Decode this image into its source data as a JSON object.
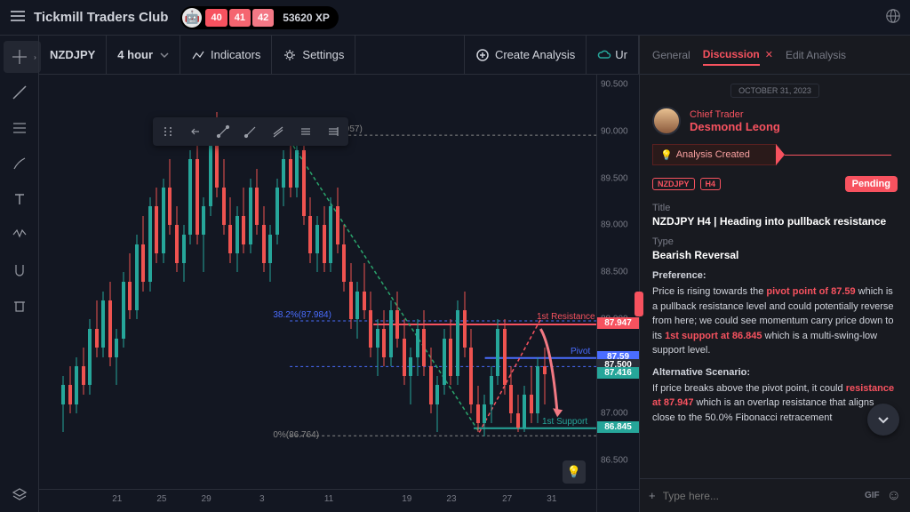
{
  "header": {
    "brand": "Tickmill Traders Club",
    "xp_boxes": [
      {
        "v": "40",
        "bg": "#f7525f"
      },
      {
        "v": "41",
        "bg": "#f56570"
      },
      {
        "v": "42",
        "bg": "#f37885"
      }
    ],
    "xp_total": "53620 XP"
  },
  "toolbar": {
    "symbol": "NZDJPY",
    "interval": "4 hour",
    "indicators": "Indicators",
    "settings": "Settings",
    "create": "Create Analysis",
    "ur": "Ur"
  },
  "chart": {
    "colors": {
      "up": "#26a69a",
      "down": "#ef5350",
      "resistance": "#f7525f",
      "pivot": "#4a6dff",
      "support": "#26a69a",
      "fib_line": "#4a6dff",
      "fib_text": "#787b86",
      "trend1": "#26a69a",
      "trend2": "#f7525f",
      "arrow": "#f27983"
    },
    "y_range": [
      86.2,
      90.6
    ],
    "y_ticks": [
      "90.500",
      "90.000",
      "89.500",
      "89.000",
      "88.500",
      "88.000",
      "87.500",
      "87.000",
      "86.500"
    ],
    "x_ticks": [
      {
        "p": 14,
        "l": "21"
      },
      {
        "p": 22,
        "l": "25"
      },
      {
        "p": 30,
        "l": "29"
      },
      {
        "p": 40,
        "l": "3"
      },
      {
        "p": 52,
        "l": "11"
      },
      {
        "p": 66,
        "l": "19"
      },
      {
        "p": 74,
        "l": "23"
      },
      {
        "p": 84,
        "l": "27"
      },
      {
        "p": 92,
        "l": "31"
      }
    ],
    "price_tags": [
      {
        "v": "87.947",
        "bg": "#f7525f",
        "y": 87.947
      },
      {
        "v": "87.59",
        "bg": "#4a6dff",
        "y": 87.59
      },
      {
        "v": "87.500",
        "bg": "#2a2e39",
        "y": 87.5
      },
      {
        "v": "87.416",
        "bg": "#26a69a",
        "y": 87.416
      },
      {
        "v": "86.845",
        "bg": "#26a69a",
        "y": 86.845
      }
    ],
    "fib_100": "100%(89.957)",
    "fib_382": "38.2%(87.984)",
    "fib_0": "0%(86.764)",
    "lbl_resistance": "1st Resistance",
    "lbl_pivot": "Pivot",
    "lbl_support": "1st Support",
    "candles": [
      {
        "x": 4,
        "o": 87.1,
        "h": 87.4,
        "l": 86.8,
        "c": 87.3,
        "u": 1
      },
      {
        "x": 5.2,
        "o": 87.3,
        "h": 87.5,
        "l": 87.0,
        "c": 87.1,
        "u": 0
      },
      {
        "x": 6.4,
        "o": 87.1,
        "h": 87.6,
        "l": 87.0,
        "c": 87.5,
        "u": 1
      },
      {
        "x": 7.6,
        "o": 87.5,
        "h": 87.7,
        "l": 87.2,
        "c": 87.3,
        "u": 0
      },
      {
        "x": 8.8,
        "o": 87.3,
        "h": 88.0,
        "l": 87.2,
        "c": 87.9,
        "u": 1
      },
      {
        "x": 10,
        "o": 87.9,
        "h": 88.2,
        "l": 87.6,
        "c": 87.7,
        "u": 0
      },
      {
        "x": 11.2,
        "o": 87.7,
        "h": 88.3,
        "l": 87.6,
        "c": 88.2,
        "u": 1
      },
      {
        "x": 12.4,
        "o": 88.2,
        "h": 88.4,
        "l": 87.5,
        "c": 87.6,
        "u": 0
      },
      {
        "x": 13.6,
        "o": 87.6,
        "h": 87.9,
        "l": 87.3,
        "c": 87.8,
        "u": 1
      },
      {
        "x": 14.8,
        "o": 87.8,
        "h": 88.5,
        "l": 87.7,
        "c": 88.4,
        "u": 1
      },
      {
        "x": 16,
        "o": 88.4,
        "h": 88.7,
        "l": 88.0,
        "c": 88.1,
        "u": 0
      },
      {
        "x": 17.2,
        "o": 88.1,
        "h": 88.9,
        "l": 88.0,
        "c": 88.8,
        "u": 1
      },
      {
        "x": 18.4,
        "o": 88.8,
        "h": 89.1,
        "l": 88.3,
        "c": 88.4,
        "u": 0
      },
      {
        "x": 19.6,
        "o": 88.4,
        "h": 89.3,
        "l": 88.3,
        "c": 89.2,
        "u": 1
      },
      {
        "x": 20.8,
        "o": 89.2,
        "h": 89.4,
        "l": 88.6,
        "c": 88.7,
        "u": 0
      },
      {
        "x": 22,
        "o": 88.7,
        "h": 89.5,
        "l": 88.6,
        "c": 89.4,
        "u": 1
      },
      {
        "x": 23.2,
        "o": 89.4,
        "h": 89.7,
        "l": 88.9,
        "c": 89.0,
        "u": 0
      },
      {
        "x": 24.4,
        "o": 89.0,
        "h": 89.2,
        "l": 88.5,
        "c": 88.6,
        "u": 0
      },
      {
        "x": 25.6,
        "o": 88.6,
        "h": 89.0,
        "l": 88.4,
        "c": 88.9,
        "u": 1
      },
      {
        "x": 26.8,
        "o": 88.9,
        "h": 89.8,
        "l": 88.8,
        "c": 89.7,
        "u": 1
      },
      {
        "x": 28,
        "o": 89.7,
        "h": 89.9,
        "l": 88.8,
        "c": 88.9,
        "u": 0
      },
      {
        "x": 29.2,
        "o": 88.9,
        "h": 89.3,
        "l": 88.5,
        "c": 89.2,
        "u": 1
      },
      {
        "x": 30.4,
        "o": 89.2,
        "h": 90.1,
        "l": 89.1,
        "c": 90.0,
        "u": 1
      },
      {
        "x": 31.6,
        "o": 90.0,
        "h": 90.2,
        "l": 89.3,
        "c": 89.4,
        "u": 0
      },
      {
        "x": 32.8,
        "o": 89.4,
        "h": 89.7,
        "l": 88.9,
        "c": 89.0,
        "u": 0
      },
      {
        "x": 34,
        "o": 89.0,
        "h": 89.3,
        "l": 88.6,
        "c": 88.7,
        "u": 0
      },
      {
        "x": 35.2,
        "o": 88.7,
        "h": 89.2,
        "l": 88.5,
        "c": 89.1,
        "u": 1
      },
      {
        "x": 36.4,
        "o": 89.1,
        "h": 89.4,
        "l": 88.7,
        "c": 88.8,
        "u": 0
      },
      {
        "x": 37.6,
        "o": 88.8,
        "h": 89.5,
        "l": 88.7,
        "c": 89.4,
        "u": 1
      },
      {
        "x": 38.8,
        "o": 89.4,
        "h": 89.6,
        "l": 88.9,
        "c": 89.0,
        "u": 0
      },
      {
        "x": 40,
        "o": 89.0,
        "h": 89.2,
        "l": 88.5,
        "c": 88.6,
        "u": 0
      },
      {
        "x": 41.2,
        "o": 88.6,
        "h": 89.0,
        "l": 88.4,
        "c": 88.9,
        "u": 1
      },
      {
        "x": 42.4,
        "o": 88.9,
        "h": 89.5,
        "l": 88.8,
        "c": 89.4,
        "u": 1
      },
      {
        "x": 43.6,
        "o": 89.4,
        "h": 89.8,
        "l": 89.2,
        "c": 89.7,
        "u": 1
      },
      {
        "x": 44.8,
        "o": 89.7,
        "h": 89.95,
        "l": 89.3,
        "c": 89.4,
        "u": 0
      },
      {
        "x": 46,
        "o": 89.4,
        "h": 89.9,
        "l": 89.3,
        "c": 89.8,
        "u": 1
      },
      {
        "x": 47.2,
        "o": 89.8,
        "h": 89.9,
        "l": 89.0,
        "c": 89.1,
        "u": 0
      },
      {
        "x": 48.4,
        "o": 89.1,
        "h": 89.3,
        "l": 88.6,
        "c": 88.7,
        "u": 0
      },
      {
        "x": 49.6,
        "o": 88.7,
        "h": 89.1,
        "l": 88.5,
        "c": 89.0,
        "u": 1
      },
      {
        "x": 50.8,
        "o": 89.0,
        "h": 89.2,
        "l": 88.5,
        "c": 88.6,
        "u": 0
      },
      {
        "x": 52,
        "o": 88.6,
        "h": 89.3,
        "l": 88.5,
        "c": 89.2,
        "u": 1
      },
      {
        "x": 53.2,
        "o": 89.2,
        "h": 89.4,
        "l": 88.7,
        "c": 88.8,
        "u": 0
      },
      {
        "x": 54.4,
        "o": 88.8,
        "h": 89.0,
        "l": 88.3,
        "c": 88.4,
        "u": 0
      },
      {
        "x": 55.6,
        "o": 88.4,
        "h": 88.6,
        "l": 87.9,
        "c": 88.0,
        "u": 0
      },
      {
        "x": 56.8,
        "o": 88.0,
        "h": 88.4,
        "l": 87.8,
        "c": 88.3,
        "u": 1
      },
      {
        "x": 58,
        "o": 88.3,
        "h": 88.6,
        "l": 88.0,
        "c": 88.1,
        "u": 0
      },
      {
        "x": 59.2,
        "o": 88.1,
        "h": 88.3,
        "l": 87.6,
        "c": 87.7,
        "u": 0
      },
      {
        "x": 60.4,
        "o": 87.7,
        "h": 88.0,
        "l": 87.4,
        "c": 87.9,
        "u": 1
      },
      {
        "x": 61.6,
        "o": 87.9,
        "h": 88.1,
        "l": 87.5,
        "c": 87.6,
        "u": 0
      },
      {
        "x": 62.8,
        "o": 87.6,
        "h": 88.2,
        "l": 87.5,
        "c": 88.1,
        "u": 1
      },
      {
        "x": 64,
        "o": 88.1,
        "h": 88.3,
        "l": 87.7,
        "c": 87.8,
        "u": 0
      },
      {
        "x": 65.2,
        "o": 87.8,
        "h": 88.0,
        "l": 87.3,
        "c": 87.4,
        "u": 0
      },
      {
        "x": 66.4,
        "o": 87.4,
        "h": 87.7,
        "l": 87.1,
        "c": 87.6,
        "u": 1
      },
      {
        "x": 67.6,
        "o": 87.6,
        "h": 88.0,
        "l": 87.4,
        "c": 87.9,
        "u": 1
      },
      {
        "x": 68.8,
        "o": 87.9,
        "h": 88.1,
        "l": 87.4,
        "c": 87.5,
        "u": 0
      },
      {
        "x": 70,
        "o": 87.5,
        "h": 87.7,
        "l": 87.0,
        "c": 87.1,
        "u": 0
      },
      {
        "x": 71.2,
        "o": 87.1,
        "h": 87.4,
        "l": 86.8,
        "c": 87.3,
        "u": 1
      },
      {
        "x": 72.4,
        "o": 87.3,
        "h": 87.9,
        "l": 87.2,
        "c": 87.8,
        "u": 1
      },
      {
        "x": 73.6,
        "o": 87.8,
        "h": 88.0,
        "l": 87.3,
        "c": 87.4,
        "u": 0
      },
      {
        "x": 74.8,
        "o": 87.4,
        "h": 88.2,
        "l": 87.3,
        "c": 88.1,
        "u": 1
      },
      {
        "x": 76,
        "o": 88.1,
        "h": 88.3,
        "l": 87.6,
        "c": 87.7,
        "u": 0
      },
      {
        "x": 77.2,
        "o": 87.7,
        "h": 87.9,
        "l": 87.0,
        "c": 87.1,
        "u": 0
      },
      {
        "x": 78.4,
        "o": 87.1,
        "h": 87.3,
        "l": 86.8,
        "c": 86.9,
        "u": 0
      },
      {
        "x": 79.6,
        "o": 86.9,
        "h": 87.2,
        "l": 86.76,
        "c": 87.1,
        "u": 1
      },
      {
        "x": 80.8,
        "o": 87.1,
        "h": 87.5,
        "l": 86.9,
        "c": 87.4,
        "u": 1
      },
      {
        "x": 82,
        "o": 87.4,
        "h": 88.0,
        "l": 87.3,
        "c": 87.9,
        "u": 1
      },
      {
        "x": 83.2,
        "o": 87.9,
        "h": 88.0,
        "l": 87.2,
        "c": 87.3,
        "u": 0
      },
      {
        "x": 84.4,
        "o": 87.3,
        "h": 87.5,
        "l": 86.9,
        "c": 87.0,
        "u": 0
      },
      {
        "x": 85.6,
        "o": 87.0,
        "h": 87.2,
        "l": 86.8,
        "c": 86.85,
        "u": 0
      },
      {
        "x": 86.8,
        "o": 86.85,
        "h": 87.3,
        "l": 86.8,
        "c": 87.2,
        "u": 1
      },
      {
        "x": 88,
        "o": 87.2,
        "h": 87.5,
        "l": 86.9,
        "c": 87.0,
        "u": 0
      },
      {
        "x": 89.2,
        "o": 87.0,
        "h": 87.6,
        "l": 86.9,
        "c": 87.5,
        "u": 1
      },
      {
        "x": 90.4,
        "o": 87.5,
        "h": 87.7,
        "l": 87.1,
        "c": 87.42,
        "u": 0
      }
    ]
  },
  "panel": {
    "tabs": [
      "General",
      "Discussion",
      "Edit Analysis"
    ],
    "date": "OCTOBER 31, 2023",
    "role": "Chief Trader",
    "author": "Desmond Leong",
    "ribbon": "Analysis Created",
    "tags": [
      "NZDJPY",
      "H4"
    ],
    "status": "Pending",
    "title_lbl": "Title",
    "title_val": "NZDJPY H4 | Heading into pullback resistance",
    "type_lbl": "Type",
    "type_val": "Bearish Reversal",
    "pref_lbl": "Preference:",
    "pref_p1a": "Price is rising towards the ",
    "pref_hl1": "pivot point of 87.59",
    "pref_p1b": " which is a pullback resistance level and could potentially reverse from here; we could see momentum carry price down to its ",
    "pref_hl2": "1st support at 86.845",
    "pref_p1c": " which is a multi-swing-low support level.",
    "alt_lbl": "Alternative Scenario:",
    "alt_p1a": "If price breaks above the pivot point, it could ",
    "alt_hl1": "resistance at 87.947",
    "alt_p1b": " which is an overlap resistance that aligns close to the 50.0% Fibonacci retracement",
    "input_placeholder": "Type here...",
    "gif": "GIF"
  }
}
